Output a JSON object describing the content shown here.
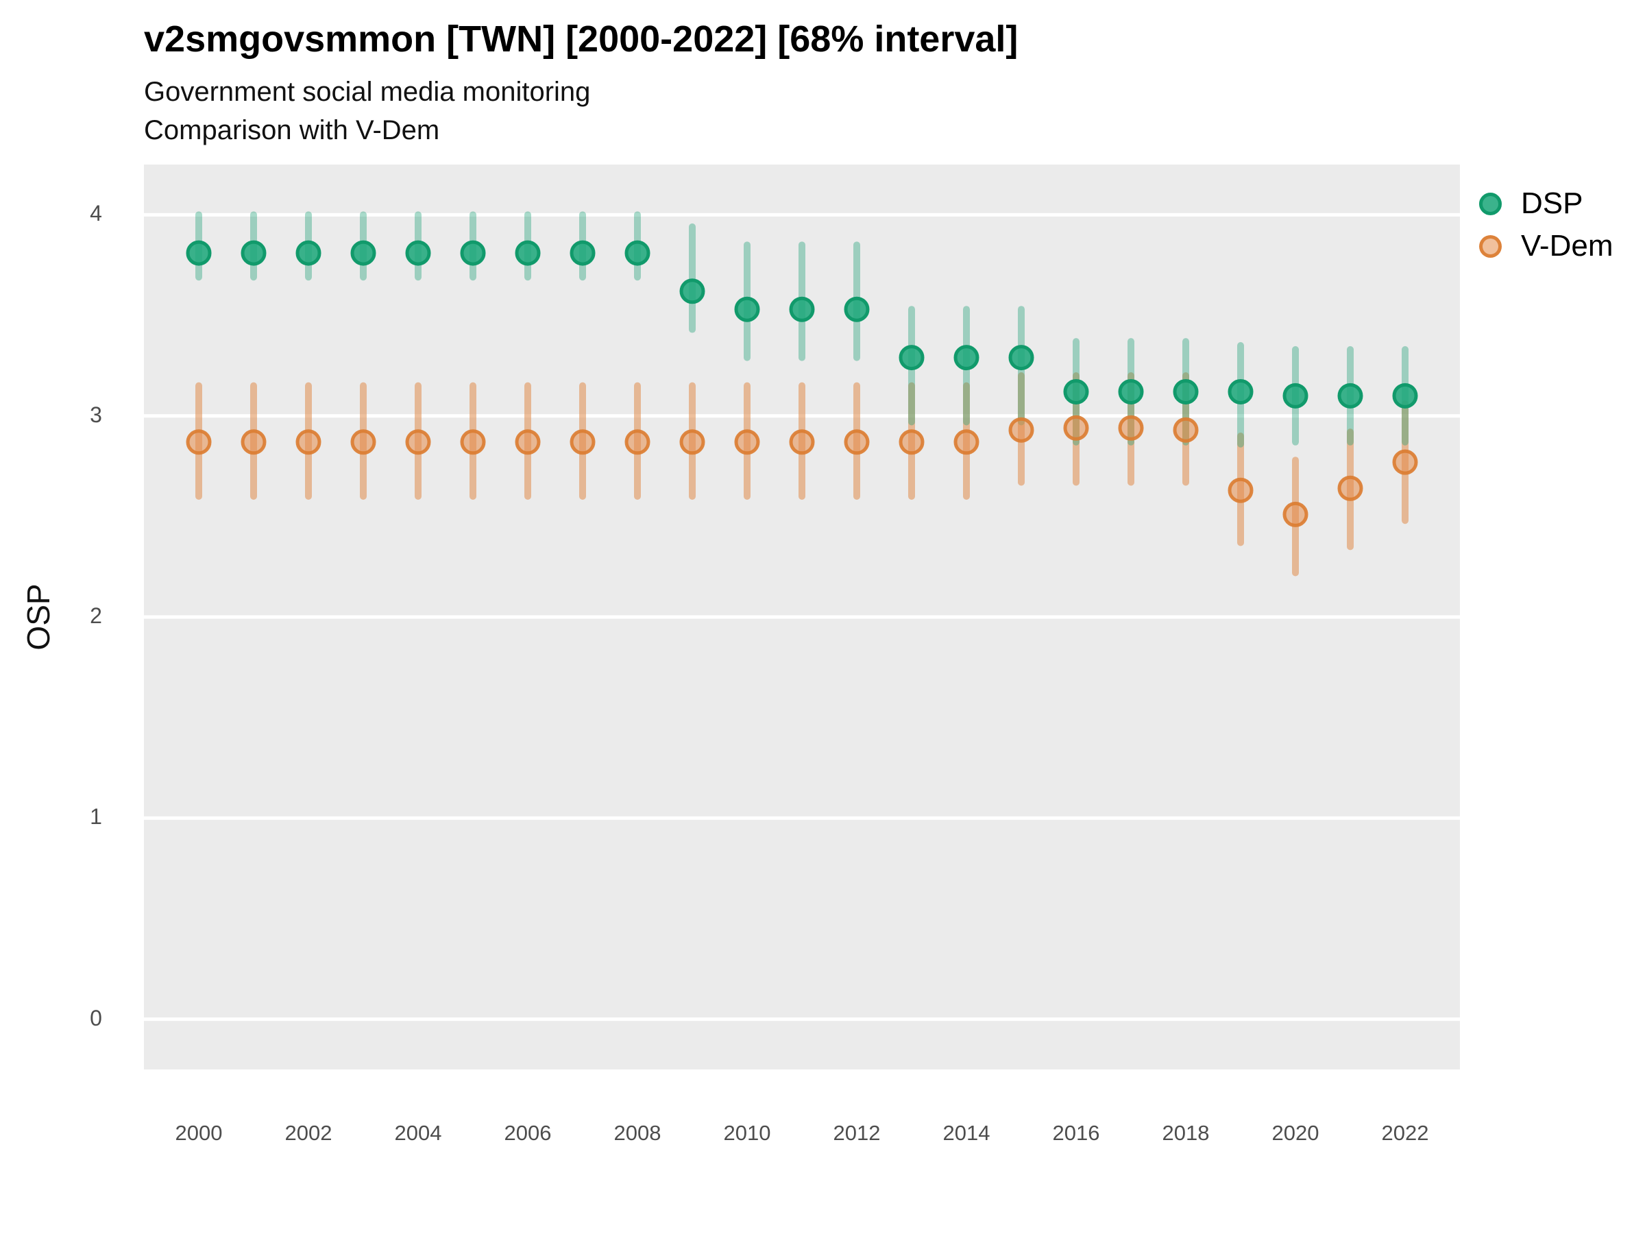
{
  "title": "v2smgovsmmon [TWN] [2000-2022] [68% interval]",
  "subtitle_line1": "Government social media monitoring",
  "subtitle_line2": "Comparison with V-Dem",
  "y_axis_title": "OSP",
  "legend": {
    "items": [
      {
        "id": "dsp",
        "label": "DSP"
      },
      {
        "id": "vdem",
        "label": "V-Dem"
      }
    ]
  },
  "colors": {
    "panel_bg": "#ebebeb",
    "gridline": "#ffffff",
    "dsp_point_fill": "rgba(32,168,124,0.88)",
    "dsp_point_stroke": "#119a6b",
    "dsp_bar": "rgba(30,160,118,0.38)",
    "vdem_point_fill": "rgba(229,140,75,0.55)",
    "vdem_point_stroke": "rgba(219,125,50,0.92)",
    "vdem_bar": "rgba(224,141,77,0.55)",
    "tick_text": "#4d4d4d",
    "title_text": "#000000"
  },
  "chart_data": {
    "type": "pointrange",
    "title": "v2smgovsmmon [TWN] [2000-2022] [68% interval]",
    "subtitle": [
      "Government social media monitoring",
      "Comparison with V-Dem"
    ],
    "ylabel": "OSP",
    "xlabel": "",
    "interval": "68%",
    "grid": "major-y-only",
    "legend_position": "top-right",
    "xlim": [
      1999,
      2023
    ],
    "ylim": [
      -0.25,
      4.25
    ],
    "y_ticks": [
      4,
      3,
      2,
      1,
      0
    ],
    "x_tick_years": [
      2000,
      2002,
      2004,
      2006,
      2008,
      2010,
      2012,
      2014,
      2016,
      2018,
      2020,
      2022
    ],
    "x": [
      2000,
      2001,
      2002,
      2003,
      2004,
      2005,
      2006,
      2007,
      2008,
      2009,
      2010,
      2011,
      2012,
      2013,
      2014,
      2015,
      2016,
      2017,
      2018,
      2019,
      2020,
      2021,
      2022
    ],
    "series": [
      {
        "name": "DSP",
        "values": [
          3.81,
          3.81,
          3.81,
          3.81,
          3.81,
          3.81,
          3.81,
          3.81,
          3.81,
          3.62,
          3.53,
          3.53,
          3.53,
          3.29,
          3.29,
          3.29,
          3.12,
          3.12,
          3.12,
          3.12,
          3.1,
          3.1,
          3.1
        ],
        "lo": [
          3.69,
          3.69,
          3.69,
          3.69,
          3.69,
          3.69,
          3.69,
          3.69,
          3.69,
          3.43,
          3.29,
          3.29,
          3.29,
          2.97,
          2.97,
          2.97,
          2.87,
          2.87,
          2.87,
          2.86,
          2.87,
          2.87,
          2.87
        ],
        "hi": [
          4.0,
          4.0,
          4.0,
          4.0,
          4.0,
          4.0,
          4.0,
          4.0,
          4.0,
          3.94,
          3.85,
          3.85,
          3.85,
          3.53,
          3.53,
          3.53,
          3.37,
          3.37,
          3.37,
          3.35,
          3.33,
          3.33,
          3.33
        ]
      },
      {
        "name": "V-Dem",
        "values": [
          2.87,
          2.87,
          2.87,
          2.87,
          2.87,
          2.87,
          2.87,
          2.87,
          2.87,
          2.87,
          2.87,
          2.87,
          2.87,
          2.87,
          2.87,
          2.93,
          2.94,
          2.94,
          2.93,
          2.63,
          2.51,
          2.64,
          2.77
        ],
        "lo": [
          2.6,
          2.6,
          2.6,
          2.6,
          2.6,
          2.6,
          2.6,
          2.6,
          2.6,
          2.6,
          2.6,
          2.6,
          2.6,
          2.6,
          2.6,
          2.67,
          2.67,
          2.67,
          2.67,
          2.37,
          2.22,
          2.35,
          2.48
        ],
        "hi": [
          3.15,
          3.15,
          3.15,
          3.15,
          3.15,
          3.15,
          3.15,
          3.15,
          3.15,
          3.15,
          3.15,
          3.15,
          3.15,
          3.15,
          3.15,
          3.2,
          3.2,
          3.2,
          3.2,
          2.9,
          2.78,
          2.92,
          3.06
        ]
      }
    ]
  }
}
